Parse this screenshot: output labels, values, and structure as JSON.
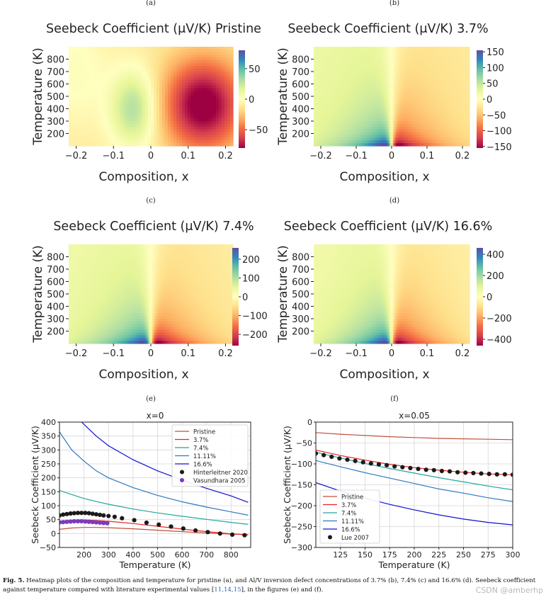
{
  "chart_data": [
    {
      "type": "heatmap",
      "panel": "(a)",
      "title": "Seebeck Coefficient (μV/K) Pristine",
      "xlabel": "Composition, x",
      "ylabel": "Temperature (K)",
      "x_range": [
        -0.22,
        0.22
      ],
      "y_range": [
        100,
        900
      ],
      "x_ticks": [
        -0.2,
        -0.1,
        0,
        0.1,
        0.2
      ],
      "x_tick_labels": [
        "−0.2",
        "−0.1",
        "0",
        "0.1",
        "0.2"
      ],
      "y_ticks": [
        200,
        300,
        400,
        500,
        600,
        700,
        800
      ],
      "colorbar_range": [
        -80,
        80
      ],
      "colorbar_ticks": [
        50,
        0,
        -50
      ],
      "colorbar_tick_labels": [
        "50",
        "0",
        "−50"
      ],
      "pattern": "positive lobe near x≈-0.05 (~+40), negative lobe near x≈0.13 (~-75) at mid temperatures"
    },
    {
      "type": "heatmap",
      "panel": "(b)",
      "title": "Seebeck Coefficient (μV/K) 3.7%",
      "xlabel": "Composition, x",
      "ylabel": "Temperature (K)",
      "x_range": [
        -0.22,
        0.22
      ],
      "y_range": [
        100,
        900
      ],
      "x_ticks": [
        -0.2,
        -0.1,
        0,
        0.1,
        0.2
      ],
      "x_tick_labels": [
        "−0.2",
        "−0.1",
        "0",
        "0.1",
        "0.2"
      ],
      "y_ticks": [
        200,
        300,
        400,
        500,
        600,
        700,
        800
      ],
      "colorbar_range": [
        -155,
        155
      ],
      "colorbar_ticks": [
        150,
        100,
        50,
        0,
        -50,
        -100,
        -150
      ],
      "colorbar_tick_labels": [
        "150",
        "100",
        "50",
        "0",
        "−50",
        "−100",
        "−150"
      ],
      "pattern": "sharp positive/negative split at x=0, strongest at low temperature"
    },
    {
      "type": "heatmap",
      "panel": "(c)",
      "title": "Seebeck Coefficient (μV/K) 7.4%",
      "xlabel": "Composition, x",
      "ylabel": "Temperature (K)",
      "x_range": [
        -0.22,
        0.22
      ],
      "y_range": [
        100,
        900
      ],
      "x_ticks": [
        -0.2,
        -0.1,
        0,
        0.1,
        0.2
      ],
      "x_tick_labels": [
        "−0.2",
        "−0.1",
        "0",
        "0.1",
        "0.2"
      ],
      "y_ticks": [
        200,
        300,
        400,
        500,
        600,
        700,
        800
      ],
      "colorbar_range": [
        -260,
        260
      ],
      "colorbar_ticks": [
        200,
        100,
        0,
        -100,
        -200
      ],
      "colorbar_tick_labels": [
        "200",
        "100",
        "0",
        "−100",
        "−200"
      ],
      "pattern": "sharp positive/negative split at x=0, strongest at low temperature"
    },
    {
      "type": "heatmap",
      "panel": "(d)",
      "title": "Seebeck Coefficient (μV/K) 16.6%",
      "xlabel": "Composition, x",
      "ylabel": "Temperature (K)",
      "x_range": [
        -0.22,
        0.22
      ],
      "y_range": [
        100,
        900
      ],
      "x_ticks": [
        -0.2,
        -0.1,
        0,
        0.1,
        0.2
      ],
      "x_tick_labels": [
        "−0.2",
        "−0.1",
        "0",
        "0.1",
        "0.2"
      ],
      "y_ticks": [
        200,
        300,
        400,
        500,
        600,
        700,
        800
      ],
      "colorbar_range": [
        -460,
        460
      ],
      "colorbar_ticks": [
        400,
        200,
        0,
        -200,
        -400
      ],
      "colorbar_tick_labels": [
        "400",
        "200",
        "0",
        "−200",
        "−400"
      ],
      "pattern": "very sharp positive/negative split at x=0, strongest at low temperature"
    },
    {
      "type": "line",
      "panel": "(e)",
      "title": "x=0",
      "xlabel": "Temperature (K)",
      "ylabel": "Seebeck Coefficient (μV/K)",
      "xlim": [
        100,
        880
      ],
      "ylim": [
        -50,
        400
      ],
      "x_ticks": [
        200,
        300,
        400,
        500,
        600,
        700,
        800
      ],
      "y_ticks": [
        -50,
        0,
        50,
        100,
        150,
        200,
        250,
        300,
        350,
        400
      ],
      "y_tick_labels": [
        "−50",
        "0",
        "50",
        "100",
        "150",
        "200",
        "250",
        "300",
        "350",
        "400"
      ],
      "legend_position": "top-right",
      "series": [
        {
          "name": "Pristine",
          "color": "#c0503a",
          "x": [
            100,
            150,
            200,
            250,
            300,
            400,
            500,
            600,
            700,
            800,
            870
          ],
          "y": [
            15,
            20,
            22,
            22,
            21,
            17,
            12,
            7,
            2,
            -2,
            -4
          ]
        },
        {
          "name": "3.7%",
          "color": "#ee2222",
          "x": [
            100,
            150,
            200,
            250,
            300,
            400,
            500,
            600,
            700,
            800,
            870
          ],
          "y": [
            44,
            48,
            49,
            47,
            44,
            36,
            26,
            16,
            7,
            -1,
            -5
          ]
        },
        {
          "name": "7.4%",
          "color": "#20a89a",
          "x": [
            100,
            150,
            200,
            250,
            300,
            400,
            500,
            600,
            700,
            800,
            870
          ],
          "y": [
            155,
            140,
            126,
            115,
            105,
            88,
            74,
            62,
            51,
            40,
            33
          ]
        },
        {
          "name": "11.11%",
          "color": "#2f78c0",
          "x": [
            100,
            150,
            200,
            250,
            300,
            400,
            500,
            600,
            700,
            800,
            870
          ],
          "y": [
            365,
            300,
            260,
            225,
            200,
            165,
            137,
            114,
            95,
            78,
            66
          ]
        },
        {
          "name": "16.6%",
          "color": "#1010d0",
          "x": [
            190,
            250,
            300,
            400,
            500,
            600,
            700,
            800,
            870
          ],
          "y": [
            400,
            350,
            315,
            265,
            225,
            192,
            162,
            135,
            112
          ]
        },
        {
          "name": "Hinterleitner 2020",
          "color": "#1a1a1a",
          "marker": "o",
          "x": [
            100,
            115,
            130,
            145,
            160,
            175,
            190,
            205,
            220,
            235,
            250,
            265,
            280,
            300,
            325,
            355,
            405,
            455,
            505,
            555,
            605,
            655,
            705,
            755,
            805,
            855
          ],
          "y": [
            65,
            68,
            70,
            72,
            73,
            74,
            74,
            74,
            73,
            71,
            69,
            67,
            65,
            63,
            60,
            55,
            48,
            39,
            32,
            25,
            18,
            11,
            5,
            0,
            -4,
            -6
          ]
        },
        {
          "name": "Vasundhara 2005",
          "color": "#7a3bbd",
          "marker": "o",
          "x": [
            100,
            115,
            130,
            145,
            160,
            175,
            190,
            205,
            220,
            235,
            250,
            265,
            280,
            295
          ],
          "y": [
            40,
            41,
            42,
            43,
            44,
            44,
            44,
            43,
            42,
            41,
            40,
            39,
            38,
            37
          ]
        }
      ]
    },
    {
      "type": "line",
      "panel": "(f)",
      "title": "x=0.05",
      "xlabel": "Temperature (K)",
      "ylabel": "Seebeck Coefficient (μV/K)",
      "xlim": [
        100,
        300
      ],
      "ylim": [
        -300,
        0
      ],
      "x_ticks": [
        125,
        150,
        175,
        200,
        225,
        250,
        275,
        300
      ],
      "y_ticks": [
        0,
        -50,
        -100,
        -150,
        -200,
        -250,
        -300
      ],
      "y_tick_labels": [
        "0",
        "−50",
        "−100",
        "−150",
        "−200",
        "−250",
        "−300"
      ],
      "legend_position": "bottom-left",
      "series": [
        {
          "name": "Pristine",
          "color": "#c0503a",
          "x": [
            100,
            125,
            150,
            175,
            200,
            225,
            250,
            275,
            300
          ],
          "y": [
            -25,
            -29,
            -32,
            -35,
            -37,
            -39,
            -40,
            -41,
            -42
          ]
        },
        {
          "name": "3.7%",
          "color": "#ee2222",
          "x": [
            100,
            125,
            150,
            175,
            200,
            225,
            250,
            275,
            300
          ],
          "y": [
            -67,
            -80,
            -91,
            -101,
            -109,
            -115,
            -120,
            -124,
            -126
          ]
        },
        {
          "name": "7.4%",
          "color": "#20a89a",
          "x": [
            100,
            125,
            150,
            175,
            200,
            225,
            250,
            275,
            300
          ],
          "y": [
            -72,
            -86,
            -99,
            -111,
            -122,
            -133,
            -143,
            -153,
            -162
          ]
        },
        {
          "name": "11.11%",
          "color": "#2f78c0",
          "x": [
            100,
            125,
            150,
            175,
            200,
            225,
            250,
            275,
            300
          ],
          "y": [
            -92,
            -107,
            -121,
            -134,
            -147,
            -160,
            -170,
            -181,
            -190
          ]
        },
        {
          "name": "16.6%",
          "color": "#1010d0",
          "x": [
            100,
            125,
            150,
            175,
            200,
            225,
            250,
            275,
            300
          ],
          "y": [
            -145,
            -165,
            -182,
            -197,
            -210,
            -222,
            -232,
            -240,
            -246
          ]
        },
        {
          "name": "Lue 2007",
          "color": "#1a1a1a",
          "marker": "o",
          "x": [
            100,
            108,
            116,
            124,
            132,
            140,
            148,
            156,
            164,
            172,
            180,
            188,
            196,
            204,
            212,
            220,
            228,
            236,
            244,
            252,
            260,
            268,
            276,
            284,
            292,
            300
          ],
          "y": [
            -75,
            -79,
            -83,
            -87,
            -90,
            -93,
            -96,
            -99,
            -101,
            -103,
            -106,
            -108,
            -110,
            -112,
            -114,
            -115,
            -117,
            -118,
            -120,
            -121,
            -122,
            -123,
            -124,
            -125,
            -125,
            -126
          ]
        }
      ]
    }
  ],
  "panel_labels": [
    "(a)",
    "(b)",
    "(c)",
    "(d)",
    "(e)",
    "(f)"
  ],
  "caption": {
    "fig_label": "Fig. 5.",
    "line1": " Heatmap plots of the composition and temperature for pristine (a), and Al/V inversion defect concentrations of 3.7% (b), 7.4% (c) and 16.6% (d). Seebeck coefficient",
    "line2_pre": "against temperature compared with literature experimental values [",
    "refs": "11,14,15",
    "line2_post": "], in the figures (e) and (f)."
  },
  "watermark": "CSDN @amberhp"
}
